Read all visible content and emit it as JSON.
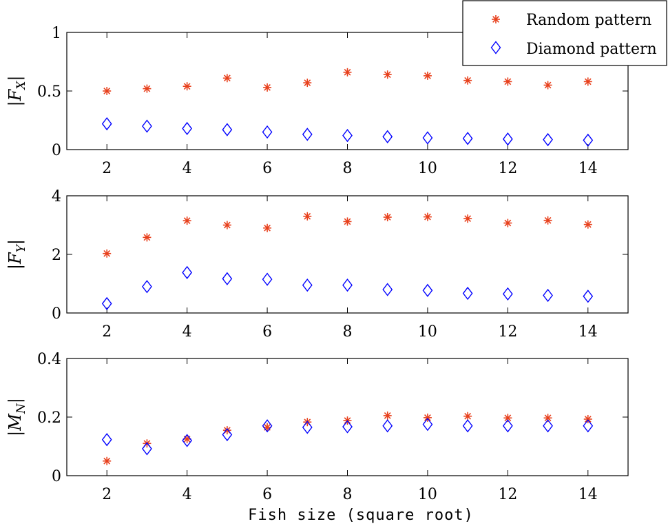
{
  "chart_data": [
    {
      "type": "scatter",
      "ylabel": "|F_X|",
      "ylabel_main": "|F",
      "ylabel_sub": "X",
      "ylabel_close": "|",
      "xlim": [
        1,
        15
      ],
      "ylim": [
        0,
        1
      ],
      "xticks": [
        2,
        4,
        6,
        8,
        10,
        12,
        14
      ],
      "yticks": [
        0,
        0.5,
        1
      ],
      "ytick_labels": [
        "0",
        "0.5",
        "1"
      ],
      "x": [
        2,
        3,
        4,
        5,
        6,
        7,
        8,
        9,
        10,
        11,
        12,
        13,
        14
      ],
      "series": [
        {
          "name": "Random pattern",
          "marker": "asterisk",
          "color": "#e8401c",
          "values": [
            0.5,
            0.52,
            0.54,
            0.61,
            0.53,
            0.57,
            0.66,
            0.64,
            0.63,
            0.59,
            0.58,
            0.55,
            0.58
          ]
        },
        {
          "name": "Diamond pattern",
          "marker": "diamond",
          "color": "#0000ff",
          "values": [
            0.22,
            0.2,
            0.18,
            0.17,
            0.15,
            0.13,
            0.12,
            0.11,
            0.1,
            0.095,
            0.09,
            0.085,
            0.08
          ]
        }
      ]
    },
    {
      "type": "scatter",
      "ylabel": "|F_Y|",
      "ylabel_main": "|F",
      "ylabel_sub": "Y",
      "ylabel_close": "|",
      "xlim": [
        1,
        15
      ],
      "ylim": [
        0,
        4
      ],
      "xticks": [
        2,
        4,
        6,
        8,
        10,
        12,
        14
      ],
      "yticks": [
        0,
        2,
        4
      ],
      "ytick_labels": [
        "0",
        "2",
        "4"
      ],
      "x": [
        2,
        3,
        4,
        5,
        6,
        7,
        8,
        9,
        10,
        11,
        12,
        13,
        14
      ],
      "series": [
        {
          "name": "Random pattern",
          "marker": "asterisk",
          "color": "#e8401c",
          "values": [
            2.03,
            2.58,
            3.15,
            3.0,
            2.9,
            3.3,
            3.12,
            3.27,
            3.28,
            3.22,
            3.07,
            3.16,
            3.02
          ]
        },
        {
          "name": "Diamond pattern",
          "marker": "diamond",
          "color": "#0000ff",
          "values": [
            0.32,
            0.9,
            1.38,
            1.17,
            1.15,
            0.95,
            0.95,
            0.8,
            0.77,
            0.67,
            0.65,
            0.6,
            0.57
          ]
        }
      ]
    },
    {
      "type": "scatter",
      "ylabel": "|M_N|",
      "ylabel_main": "|M",
      "ylabel_sub": "N",
      "ylabel_close": "|",
      "xlabel": "Fish size (square root)",
      "xlim": [
        1,
        15
      ],
      "ylim": [
        0,
        0.4
      ],
      "xticks": [
        2,
        4,
        6,
        8,
        10,
        12,
        14
      ],
      "yticks": [
        0,
        0.2,
        0.4
      ],
      "ytick_labels": [
        "0",
        "0.2",
        "0.4"
      ],
      "x": [
        2,
        3,
        4,
        5,
        6,
        7,
        8,
        9,
        10,
        11,
        12,
        13,
        14
      ],
      "series": [
        {
          "name": "Random pattern",
          "marker": "asterisk",
          "color": "#e8401c",
          "values": [
            0.05,
            0.11,
            0.125,
            0.155,
            0.165,
            0.183,
            0.188,
            0.205,
            0.198,
            0.203,
            0.197,
            0.197,
            0.193
          ]
        },
        {
          "name": "Diamond pattern",
          "marker": "diamond",
          "color": "#0000ff",
          "values": [
            0.123,
            0.092,
            0.12,
            0.14,
            0.17,
            0.165,
            0.167,
            0.17,
            0.175,
            0.17,
            0.17,
            0.17,
            0.17
          ]
        }
      ]
    }
  ],
  "legend": {
    "placement": "top-right",
    "entries": [
      "Random pattern",
      "Diamond pattern"
    ]
  }
}
